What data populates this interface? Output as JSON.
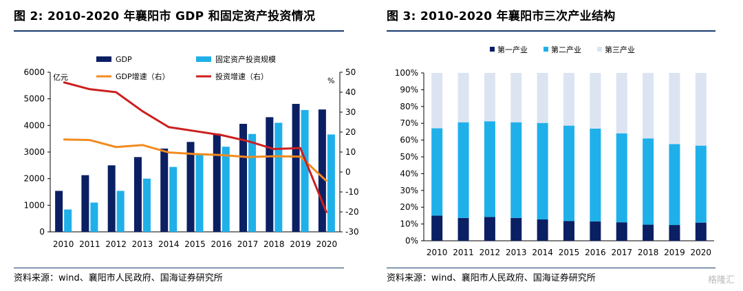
{
  "left": {
    "title": "图 2:  2010-2020 年襄阳市 GDP 和固定资产投资情况",
    "source": "资料来源：wind、襄阳市人民政府、国海证券研究所",
    "chart_data": {
      "type": "bar+line",
      "categories": [
        "2010",
        "2011",
        "2012",
        "2013",
        "2014",
        "2015",
        "2016",
        "2017",
        "2018",
        "2019",
        "2020"
      ],
      "left_axis": {
        "unit": "亿元",
        "range": [
          0,
          6000
        ],
        "ticks": [
          "0",
          "1000",
          "2000",
          "3000",
          "4000",
          "5000",
          "6000"
        ]
      },
      "right_axis": {
        "unit": "%",
        "range": [
          -30,
          50
        ],
        "ticks": [
          "-30",
          "-20",
          "-10",
          "0",
          "10",
          "20",
          "30",
          "40",
          "50"
        ]
      },
      "legend_position": "top",
      "series": [
        {
          "name": "GDP",
          "kind": "bar",
          "axis": "left",
          "color": "#0b1f63",
          "values": [
            1540,
            2130,
            2500,
            2810,
            3130,
            3380,
            3690,
            4060,
            4310,
            4810,
            4600
          ]
        },
        {
          "name": "固定资产投资规模",
          "kind": "bar",
          "axis": "left",
          "color": "#1fb0ea",
          "values": [
            840,
            1100,
            1540,
            2000,
            2440,
            2920,
            3200,
            3680,
            4100,
            4580,
            3660
          ]
        },
        {
          "name": "GDP增速（右）",
          "kind": "line",
          "axis": "right",
          "color": "#f28a1e",
          "values": [
            16.3,
            16.0,
            12.5,
            13.5,
            9.8,
            9.0,
            8.5,
            7.5,
            7.9,
            7.7,
            -4.6
          ]
        },
        {
          "name": "投资增速（右）",
          "kind": "line",
          "axis": "right",
          "color": "#cc1f1f",
          "values": [
            45.0,
            41.5,
            40.0,
            30.5,
            22.5,
            20.5,
            18.5,
            15.5,
            11.5,
            12.0,
            -20.5
          ]
        }
      ]
    }
  },
  "right": {
    "title": "图 3:  2010-2020 年襄阳市三次产业结构",
    "source": "资料来源：wind、襄阳市人民政府、国海证券研究所",
    "chart_data": {
      "type": "stacked-bar",
      "categories": [
        "2010",
        "2011",
        "2012",
        "2013",
        "2014",
        "2015",
        "2016",
        "2017",
        "2018",
        "2019",
        "2020"
      ],
      "y_axis": {
        "range": [
          0,
          100
        ],
        "ticks": [
          "0%",
          "10%",
          "20%",
          "30%",
          "40%",
          "50%",
          "60%",
          "70%",
          "80%",
          "90%",
          "100%"
        ]
      },
      "legend_position": "top",
      "series": [
        {
          "name": "第一产业",
          "color": "#0b1f63",
          "values": [
            15.0,
            13.6,
            14.2,
            13.6,
            12.7,
            11.8,
            11.5,
            11.0,
            9.6,
            9.4,
            10.8
          ]
        },
        {
          "name": "第二产业",
          "color": "#1fb0ea",
          "values": [
            52.0,
            57.0,
            57.0,
            57.0,
            57.5,
            56.8,
            55.3,
            53.0,
            51.4,
            48.2,
            45.9
          ]
        },
        {
          "name": "第三产业",
          "color": "#dce4f2",
          "values": [
            33.0,
            29.4,
            28.8,
            29.4,
            29.8,
            31.4,
            33.2,
            36.0,
            39.0,
            42.4,
            43.3
          ]
        }
      ]
    }
  },
  "watermark": "格隆汇"
}
